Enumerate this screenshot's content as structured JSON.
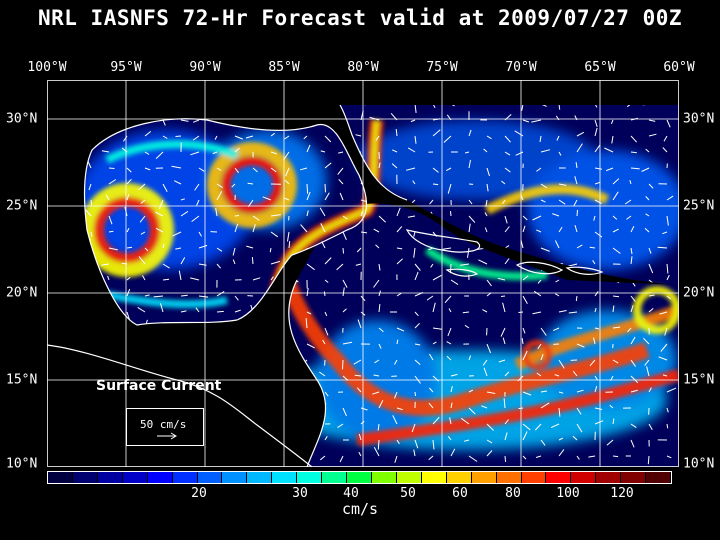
{
  "title": "NRL IASNFS  72-Hr Forecast valid at 2009/07/27 00Z",
  "lon_labels": [
    "100°W",
    "95°W",
    "90°W",
    "85°W",
    "80°W",
    "75°W",
    "70°W",
    "65°W",
    "60°W"
  ],
  "lat_labels": [
    "30°N",
    "25°N",
    "20°N",
    "15°N",
    "10°N"
  ],
  "map": {
    "label": "Surface Current",
    "reference_vector": "50 cm/s",
    "land_color": "#000000",
    "coast_color": "#ffffff",
    "grid_color": "#ffffff"
  },
  "colorbar": {
    "unit": "cm/s",
    "tick_labels": [
      "20",
      "30",
      "40",
      "50",
      "60",
      "80",
      "100",
      "120"
    ],
    "colors": [
      "#000040",
      "#000070",
      "#0000a0",
      "#0000c8",
      "#0000ff",
      "#0030ff",
      "#0060ff",
      "#0090ff",
      "#00b8ff",
      "#00e0ff",
      "#00ffe0",
      "#00ff90",
      "#00ff40",
      "#80ff00",
      "#c0ff00",
      "#ffff00",
      "#ffd000",
      "#ffa000",
      "#ff7000",
      "#ff4000",
      "#ff0000",
      "#d00000",
      "#a00000",
      "#800000",
      "#500000"
    ]
  }
}
